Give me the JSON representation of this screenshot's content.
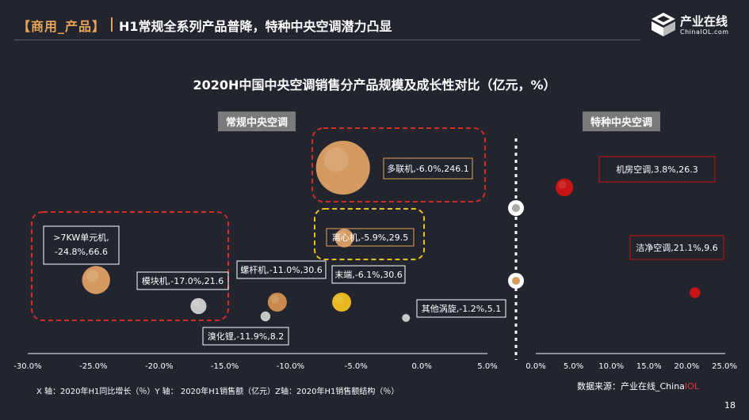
{
  "header": {
    "tag": "【商用_产品】",
    "headline": "H1常规全系列产品普降，特种中央空调潜力凸显"
  },
  "logo": {
    "name": "产业在线",
    "sub": "ChinaIOL.com"
  },
  "chart_title": "2020H中国中央空调销售分产品规模及成长性对比（亿元，%）",
  "section_labels": {
    "left": "常规中央空调",
    "right": "特种中央空调"
  },
  "axis_note": "X 轴：2020年H1同比增长（％）Y 轴： 2020年H1销售额（亿元）Z轴：2020年H1销售额结构（％）",
  "source": {
    "prefix": "数据来源：产业在线_China",
    "highlight": "IOL"
  },
  "page_number": "18",
  "colors": {
    "background": "#22242e",
    "accent_orange": "#e8a35a",
    "dashed_red": "#d42b2b",
    "dashed_yellow": "#e8c21c",
    "bubble_red": "#c81414"
  },
  "chart_data": [
    {
      "type": "scatter",
      "title": "常规中央空调",
      "x_ticks": [
        "-30.0%",
        "-25.0%",
        "-20.0%",
        "-15.0%",
        "-10.0%",
        "-5.0%",
        "0.0%",
        "5.0%"
      ],
      "xlim": [
        -30,
        5
      ],
      "points": [
        {
          "label": ">7KW单元机,-24.8%,66.6",
          "x": -24.8,
          "y": 66.6,
          "color": "#d49a62"
        },
        {
          "label": "模块机,-17.0%,21.6",
          "x": -17.0,
          "y": 21.6,
          "color": "#c8c8c8"
        },
        {
          "label": "溴化锂,-11.9%,8.2",
          "x": -11.9,
          "y": 8.2,
          "color": "#c8c8c8"
        },
        {
          "label": "螺杆机,-11.0%,30.6",
          "x": -11.0,
          "y": 30.6,
          "color": "#c98a50"
        },
        {
          "label": "末端,-6.1%,30.6",
          "x": -6.1,
          "y": 30.6,
          "color": "#e8b820"
        },
        {
          "label": "离心机,-5.9%,29.5",
          "x": -5.9,
          "y": 29.5,
          "color": "#d49a62"
        },
        {
          "label": "多联机,-6.0%,246.1",
          "x": -6.0,
          "y": 246.1,
          "color": "#d49a62"
        },
        {
          "label": "其他涡旋,-1.2%,5.1",
          "x": -1.2,
          "y": 5.1,
          "color": "#c8c8c8"
        }
      ]
    },
    {
      "type": "scatter",
      "title": "特种中央空调",
      "x_ticks": [
        "0.0%",
        "5.0%",
        "10.0%",
        "15.0%",
        "20.0%",
        "25.0%"
      ],
      "xlim": [
        0,
        25
      ],
      "points": [
        {
          "label": "机房空调,3.8%,26.3",
          "x": 3.8,
          "y": 26.3,
          "color": "#c81414"
        },
        {
          "label": "洁净空调,21.1%,9.6",
          "x": 21.1,
          "y": 9.6,
          "color": "#c81414"
        }
      ]
    }
  ]
}
